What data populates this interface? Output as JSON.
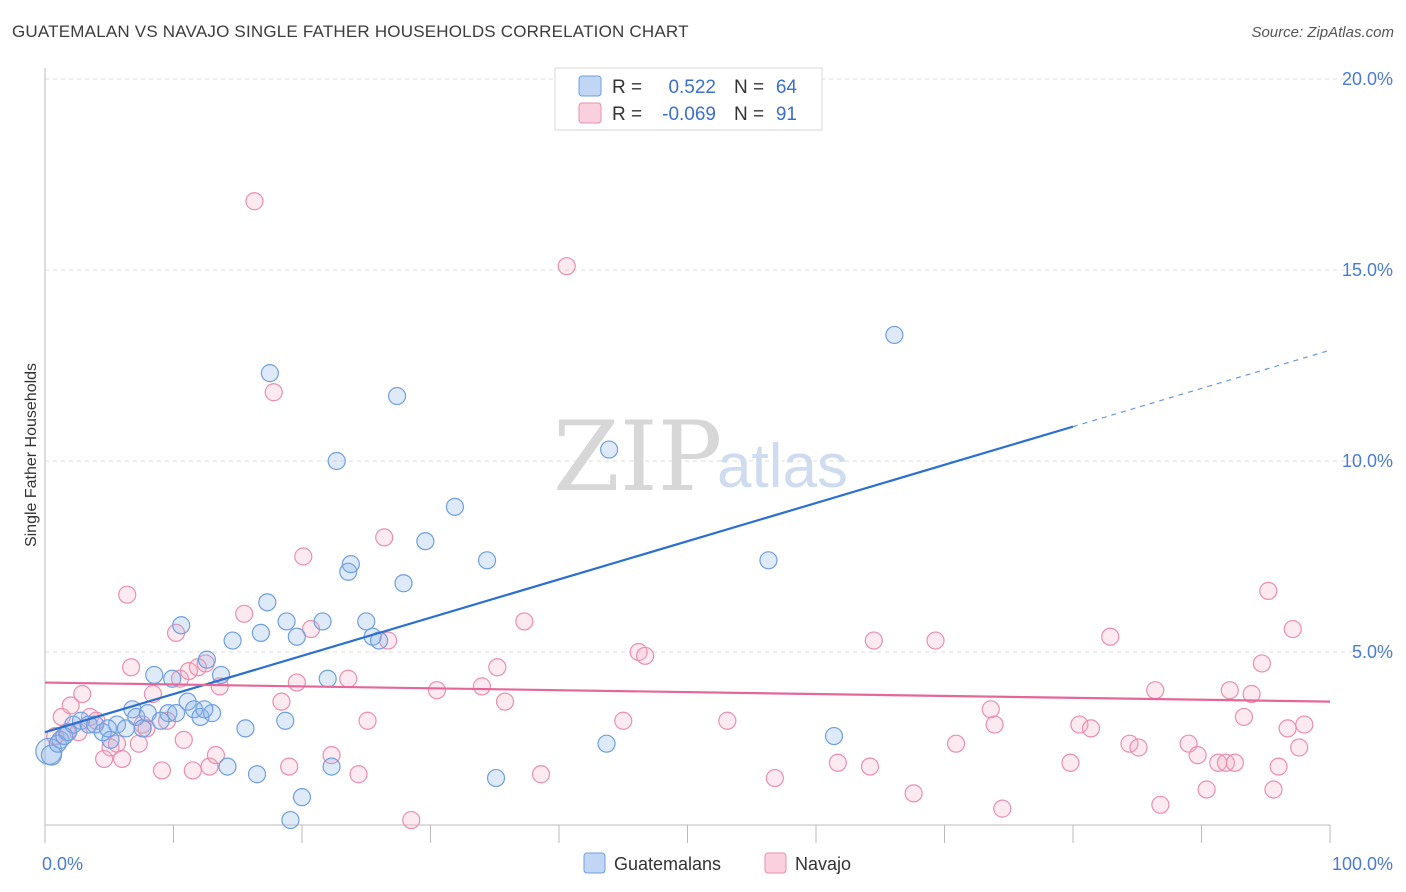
{
  "title": "GUATEMALAN VS NAVAJO SINGLE FATHER HOUSEHOLDS CORRELATION CHART",
  "source": "Source: ZipAtlas.com",
  "watermark": {
    "zip": "ZIP",
    "atlas": "atlas"
  },
  "colors": {
    "guatemalan": "#6f9fe0",
    "guatemalan_fill": "rgba(140,180,235,0.28)",
    "guatemalan_line": "#2b6fd0",
    "navajo": "#eb8fac",
    "navajo_fill": "rgba(245,170,195,0.25)",
    "navajo_line": "#e5679a",
    "grid": "#dedede",
    "axis_text": "#4a7bd0"
  },
  "legend": {
    "r_label": "R =",
    "n_label": "N =",
    "series1": {
      "r": "0.522",
      "n": "64"
    },
    "series2": {
      "r": "-0.069",
      "n": "91"
    }
  },
  "chart_data": {
    "type": "scatter",
    "title": "GUATEMALAN VS NAVAJO SINGLE FATHER HOUSEHOLDS CORRELATION CHART",
    "xlabel": "",
    "ylabel": "Single Father Households",
    "xlim": [
      0,
      100
    ],
    "ylim": [
      0,
      20.0
    ],
    "x_tick_labels": [
      "0.0%",
      "100.0%"
    ],
    "y_ticks": [
      5.0,
      10.0,
      15.0,
      20.0
    ],
    "y_tick_labels": [
      "5.0%",
      "10.0%",
      "15.0%",
      "20.0%"
    ],
    "legend_position": "top-center",
    "series": [
      {
        "name": "Guatemalans",
        "r": 0.522,
        "n": 64,
        "trend": {
          "x0": 0,
          "y0": 2.9,
          "x1": 80,
          "y1": 10.9,
          "dashed_to_x": 100,
          "dashed_to_y": 12.9
        },
        "points": [
          [
            0.3,
            2.4
          ],
          [
            0.5,
            2.3
          ],
          [
            1.2,
            2.7
          ],
          [
            1.8,
            2.9
          ],
          [
            2.2,
            3.1
          ],
          [
            2.8,
            3.2
          ],
          [
            3.4,
            3.1
          ],
          [
            4.5,
            2.9
          ],
          [
            5.1,
            2.7
          ],
          [
            5.6,
            3.1
          ],
          [
            6.3,
            3.0
          ],
          [
            6.8,
            3.5
          ],
          [
            7.1,
            3.3
          ],
          [
            7.6,
            3.0
          ],
          [
            8.0,
            3.4
          ],
          [
            8.5,
            4.4
          ],
          [
            9.0,
            3.2
          ],
          [
            9.6,
            3.4
          ],
          [
            9.9,
            4.3
          ],
          [
            10.2,
            3.4
          ],
          [
            10.6,
            5.7
          ],
          [
            11.1,
            3.7
          ],
          [
            11.6,
            3.5
          ],
          [
            12.1,
            3.3
          ],
          [
            12.6,
            4.8
          ],
          [
            13.0,
            3.4
          ],
          [
            13.7,
            4.4
          ],
          [
            14.2,
            2.0
          ],
          [
            14.6,
            5.3
          ],
          [
            15.6,
            3.0
          ],
          [
            16.5,
            1.8
          ],
          [
            16.8,
            5.5
          ],
          [
            17.3,
            6.3
          ],
          [
            17.5,
            12.3
          ],
          [
            18.7,
            3.2
          ],
          [
            18.8,
            5.8
          ],
          [
            19.1,
            0.6
          ],
          [
            19.6,
            5.4
          ],
          [
            20.0,
            1.2
          ],
          [
            21.6,
            5.8
          ],
          [
            22.0,
            4.3
          ],
          [
            22.3,
            2.0
          ],
          [
            22.7,
            10.0
          ],
          [
            23.6,
            7.1
          ],
          [
            23.8,
            7.3
          ],
          [
            25.0,
            5.8
          ],
          [
            25.5,
            5.4
          ],
          [
            26.0,
            5.3
          ],
          [
            27.4,
            11.7
          ],
          [
            27.9,
            6.8
          ],
          [
            29.6,
            7.9
          ],
          [
            31.9,
            8.8
          ],
          [
            34.4,
            7.4
          ],
          [
            35.1,
            1.7
          ],
          [
            43.7,
            2.6
          ],
          [
            43.9,
            10.3
          ],
          [
            56.3,
            7.4
          ],
          [
            61.4,
            2.8
          ],
          [
            66.1,
            13.3
          ],
          [
            1.0,
            2.6
          ],
          [
            1.5,
            2.8
          ],
          [
            3.9,
            3.1
          ],
          [
            12.4,
            3.5
          ],
          [
            4.9,
            3.0
          ]
        ]
      },
      {
        "name": "Navajo",
        "r": -0.069,
        "n": 91,
        "trend": {
          "x0": 0,
          "y0": 4.2,
          "x1": 100,
          "y1": 3.7
        },
        "points": [
          [
            0.8,
            2.8
          ],
          [
            1.3,
            3.3
          ],
          [
            1.7,
            2.9
          ],
          [
            2.0,
            3.6
          ],
          [
            2.6,
            2.9
          ],
          [
            2.9,
            3.9
          ],
          [
            3.5,
            3.3
          ],
          [
            4.0,
            3.2
          ],
          [
            4.6,
            2.2
          ],
          [
            5.1,
            2.5
          ],
          [
            5.6,
            2.6
          ],
          [
            6.0,
            2.2
          ],
          [
            6.4,
            6.5
          ],
          [
            6.7,
            4.6
          ],
          [
            7.3,
            2.6
          ],
          [
            7.6,
            3.1
          ],
          [
            7.9,
            3.0
          ],
          [
            8.4,
            3.9
          ],
          [
            9.1,
            1.9
          ],
          [
            9.5,
            3.2
          ],
          [
            10.2,
            5.5
          ],
          [
            10.5,
            4.3
          ],
          [
            10.8,
            2.7
          ],
          [
            11.2,
            4.5
          ],
          [
            11.5,
            1.9
          ],
          [
            11.9,
            4.6
          ],
          [
            12.5,
            4.7
          ],
          [
            12.8,
            2.0
          ],
          [
            13.3,
            2.3
          ],
          [
            13.6,
            4.1
          ],
          [
            15.5,
            6.0
          ],
          [
            16.3,
            16.8
          ],
          [
            17.8,
            11.8
          ],
          [
            18.4,
            3.7
          ],
          [
            19.0,
            2.0
          ],
          [
            19.6,
            4.2
          ],
          [
            20.1,
            7.5
          ],
          [
            20.7,
            5.6
          ],
          [
            22.3,
            2.3
          ],
          [
            23.6,
            4.3
          ],
          [
            24.4,
            1.8
          ],
          [
            25.1,
            3.2
          ],
          [
            26.4,
            8.0
          ],
          [
            26.7,
            5.3
          ],
          [
            28.5,
            0.6
          ],
          [
            30.5,
            4.0
          ],
          [
            34.0,
            4.1
          ],
          [
            35.2,
            4.6
          ],
          [
            35.8,
            3.7
          ],
          [
            37.3,
            5.8
          ],
          [
            38.6,
            1.8
          ],
          [
            40.6,
            15.1
          ],
          [
            45.0,
            3.2
          ],
          [
            46.2,
            5.0
          ],
          [
            46.7,
            4.9
          ],
          [
            53.1,
            3.2
          ],
          [
            56.8,
            1.7
          ],
          [
            61.7,
            2.1
          ],
          [
            64.2,
            2.0
          ],
          [
            64.5,
            5.3
          ],
          [
            67.6,
            1.3
          ],
          [
            69.3,
            5.3
          ],
          [
            70.9,
            2.6
          ],
          [
            73.6,
            3.5
          ],
          [
            73.9,
            3.1
          ],
          [
            74.5,
            0.9
          ],
          [
            79.8,
            2.1
          ],
          [
            80.5,
            3.1
          ],
          [
            81.4,
            3.0
          ],
          [
            82.9,
            5.4
          ],
          [
            84.4,
            2.6
          ],
          [
            85.1,
            2.5
          ],
          [
            86.4,
            4.0
          ],
          [
            86.8,
            1.0
          ],
          [
            89.0,
            2.6
          ],
          [
            89.7,
            2.3
          ],
          [
            90.4,
            1.4
          ],
          [
            91.3,
            2.1
          ],
          [
            91.9,
            2.1
          ],
          [
            92.2,
            4.0
          ],
          [
            92.6,
            2.1
          ],
          [
            93.3,
            3.3
          ],
          [
            93.9,
            3.9
          ],
          [
            94.7,
            4.7
          ],
          [
            95.2,
            6.6
          ],
          [
            95.6,
            1.4
          ],
          [
            96.0,
            2.0
          ],
          [
            96.7,
            3.0
          ],
          [
            97.1,
            5.6
          ],
          [
            97.6,
            2.5
          ],
          [
            98.0,
            3.1
          ]
        ]
      }
    ]
  },
  "bottom_legend": {
    "series1": "Guatemalans",
    "series2": "Navajo"
  },
  "extra_navajo_labels_note": ""
}
